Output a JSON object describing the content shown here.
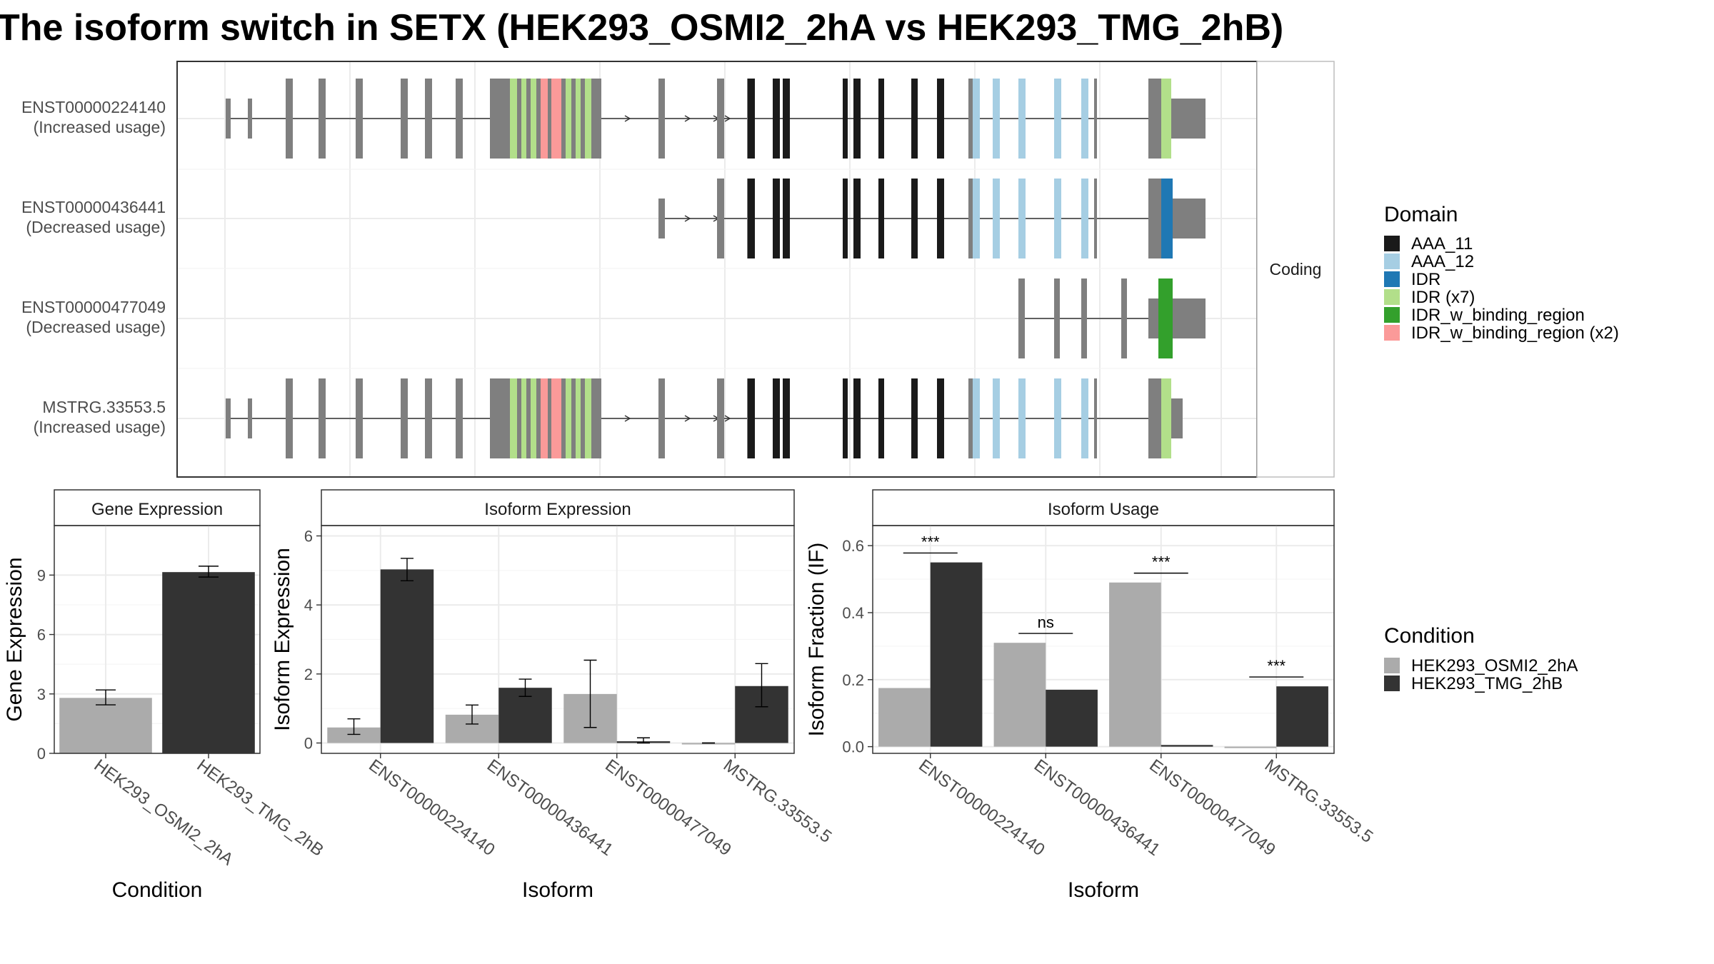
{
  "title": "The isoform switch in SETX (HEK293_OSMI2_2hA vs HEK293_TMG_2hB)",
  "structure": {
    "facet_label": "Coding",
    "isoforms": [
      {
        "id": "ENST00000224140",
        "usage": "(Increased usage)"
      },
      {
        "id": "ENST00000436441",
        "usage": "(Decreased usage)"
      },
      {
        "id": "ENST00000477049",
        "usage": "(Decreased usage)"
      },
      {
        "id": "MSTRG.33553.5",
        "usage": "(Increased usage)"
      }
    ]
  },
  "domain_legend": {
    "title": "Domain",
    "items": [
      {
        "label": "AAA_11",
        "color": "#1a1a1a"
      },
      {
        "label": "AAA_12",
        "color": "#a6cee3"
      },
      {
        "label": "IDR",
        "color": "#1f78b4"
      },
      {
        "label": "IDR (x7)",
        "color": "#b2df8a"
      },
      {
        "label": "IDR_w_binding_region",
        "color": "#33a02c"
      },
      {
        "label": "IDR_w_binding_region (x2)",
        "color": "#fb9a99"
      }
    ]
  },
  "condition_legend": {
    "title": "Condition",
    "items": [
      {
        "label": "HEK293_OSMI2_2hA",
        "color": "#ababab"
      },
      {
        "label": "HEK293_TMG_2hB",
        "color": "#333333"
      }
    ]
  },
  "chart_data": [
    {
      "type": "bar",
      "title": "Gene Expression",
      "xlabel": "Condition",
      "ylabel": "Gene Expression",
      "ylim": [
        0,
        11.5
      ],
      "yticks": [
        0,
        3,
        6,
        9
      ],
      "categories": [
        "HEK293_OSMI2_2hA",
        "HEK293_TMG_2hB"
      ],
      "values": [
        2.8,
        9.15
      ],
      "errors": [
        [
          2.45,
          3.2
        ],
        [
          8.9,
          9.45
        ]
      ]
    },
    {
      "type": "bar",
      "title": "Isoform Expression",
      "xlabel": "Isoform",
      "ylabel": "Isoform Expression",
      "ylim": [
        -0.3,
        6.3
      ],
      "yticks": [
        0,
        2,
        4,
        6
      ],
      "categories": [
        "ENST00000224140",
        "ENST00000436441",
        "ENST00000477049",
        "MSTRG.33553.5"
      ],
      "series": [
        {
          "name": "HEK293_OSMI2_2hA",
          "values": [
            0.45,
            0.82,
            1.42,
            0.0
          ],
          "errors": [
            [
              0.25,
              0.7
            ],
            [
              0.55,
              1.1
            ],
            [
              0.45,
              2.4
            ],
            [
              0.0,
              0.0
            ]
          ]
        },
        {
          "name": "HEK293_TMG_2hB",
          "values": [
            5.03,
            1.6,
            0.05,
            1.65
          ],
          "errors": [
            [
              4.7,
              5.35
            ],
            [
              1.35,
              1.85
            ],
            [
              0.0,
              0.15
            ],
            [
              1.05,
              2.3
            ]
          ]
        }
      ]
    },
    {
      "type": "bar",
      "title": "Isoform Usage",
      "xlabel": "Isoform",
      "ylabel": "Isoform Fraction (IF)",
      "ylim": [
        -0.02,
        0.66
      ],
      "yticks": [
        0.0,
        0.2,
        0.4,
        0.6
      ],
      "categories": [
        "ENST00000224140",
        "ENST00000436441",
        "ENST00000477049",
        "MSTRG.33553.5"
      ],
      "series": [
        {
          "name": "HEK293_OSMI2_2hA",
          "values": [
            0.175,
            0.31,
            0.49,
            0.0
          ]
        },
        {
          "name": "HEK293_TMG_2hB",
          "values": [
            0.55,
            0.17,
            0.005,
            0.18
          ]
        }
      ],
      "significance": [
        "***",
        "ns",
        "***",
        "***"
      ]
    }
  ]
}
